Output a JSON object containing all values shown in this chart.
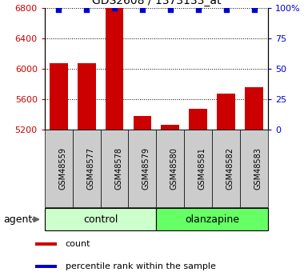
{
  "title": "GDS2608 / 1373133_at",
  "samples": [
    "GSM48559",
    "GSM48577",
    "GSM48578",
    "GSM48579",
    "GSM48580",
    "GSM48581",
    "GSM48582",
    "GSM48583"
  ],
  "counts": [
    6080,
    6080,
    6800,
    5380,
    5260,
    5480,
    5680,
    5760
  ],
  "percentile_ranks": [
    99,
    99,
    100,
    99,
    99,
    99,
    99,
    99
  ],
  "ylim_left": [
    5200,
    6800
  ],
  "ylim_right": [
    0,
    100
  ],
  "yticks_left": [
    5200,
    5600,
    6000,
    6400,
    6800
  ],
  "yticks_right": [
    0,
    25,
    50,
    75,
    100
  ],
  "yticklabels_right": [
    "0",
    "25",
    "50",
    "75",
    "100%"
  ],
  "bar_color": "#cc0000",
  "dot_color": "#0000cc",
  "bar_width": 0.65,
  "group_labels": [
    "control",
    "olanzapine"
  ],
  "group_ranges": [
    [
      0,
      3
    ],
    [
      4,
      7
    ]
  ],
  "group_colors": [
    "#ccffcc",
    "#66ff66"
  ],
  "agent_label": "agent",
  "legend_count_label": "count",
  "legend_percentile_label": "percentile rank within the sample",
  "left_tick_color": "#cc0000",
  "right_tick_color": "#0000cc",
  "background_color": "#ffffff",
  "plot_bg_color": "#ffffff",
  "sample_box_color": "#cccccc",
  "grid_color": "#000000"
}
